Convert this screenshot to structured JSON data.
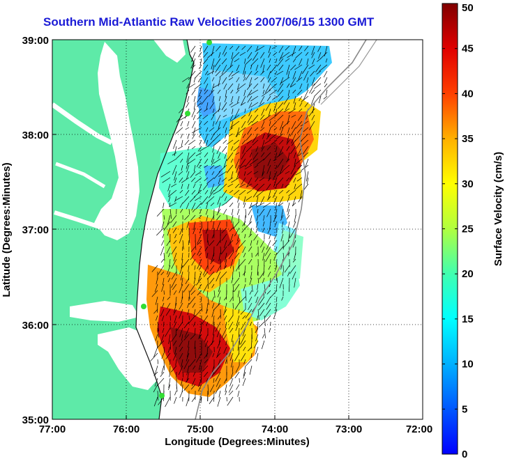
{
  "title": "Southern Mid-Atlantic Raw Velocities 2007/06/15 1300 GMT",
  "map": {
    "x_label": "Longitude (Degrees:Minutes)",
    "y_label": "Latitude (Degrees:Minutes)",
    "x_ticks": [
      "77:00",
      "76:00",
      "75:00",
      "74:00",
      "73:00",
      "72:00"
    ],
    "y_ticks": [
      "39:00",
      "38:00",
      "37:00",
      "36:00",
      "35:00"
    ],
    "lon_range": [
      -77,
      -72
    ],
    "lat_range": [
      35,
      39
    ],
    "grid": true,
    "land_color": "#5eeaa8",
    "coast_color": "#111111",
    "station_color": "#33dd33"
  },
  "colorbar": {
    "label": "Surface Velocity (cm/s)",
    "ticks": [
      "0",
      "5",
      "10",
      "15",
      "20",
      "25",
      "30",
      "35",
      "40",
      "45",
      "50"
    ],
    "range": [
      0,
      50
    ],
    "colormap": "jet"
  }
}
